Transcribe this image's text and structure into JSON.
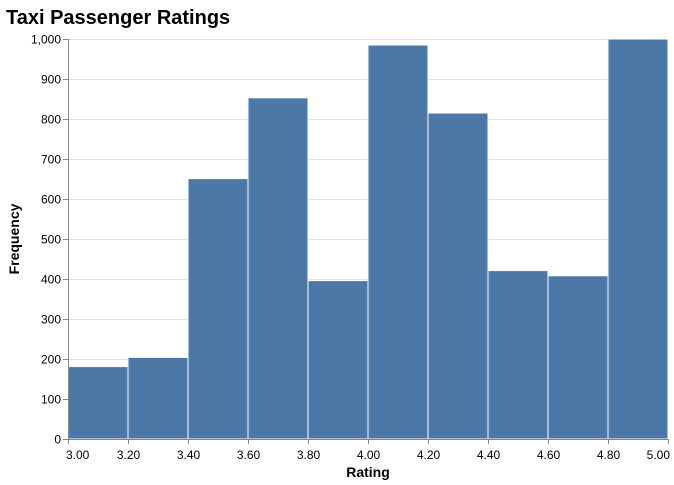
{
  "chart_data": {
    "type": "bar",
    "title": "Taxi Passenger Ratings",
    "xlabel": "Rating",
    "ylabel": "Frequency",
    "bin_edges": [
      3.0,
      3.2,
      3.4,
      3.6,
      3.8,
      4.0,
      4.2,
      4.4,
      4.6,
      4.8,
      5.0
    ],
    "values": [
      181,
      204,
      651,
      853,
      396,
      985,
      815,
      421,
      408,
      1000
    ],
    "xlim": [
      3.0,
      5.0
    ],
    "ylim": [
      0,
      1000
    ],
    "x_ticks": [
      "3.00",
      "3.20",
      "3.40",
      "3.60",
      "3.80",
      "4.00",
      "4.20",
      "4.40",
      "4.60",
      "4.80",
      "5.00"
    ],
    "y_ticks": [
      "0",
      "100",
      "200",
      "300",
      "400",
      "500",
      "600",
      "700",
      "800",
      "900",
      "1,000"
    ],
    "grid": true,
    "colors": {
      "bar": "#4c78a8"
    }
  }
}
